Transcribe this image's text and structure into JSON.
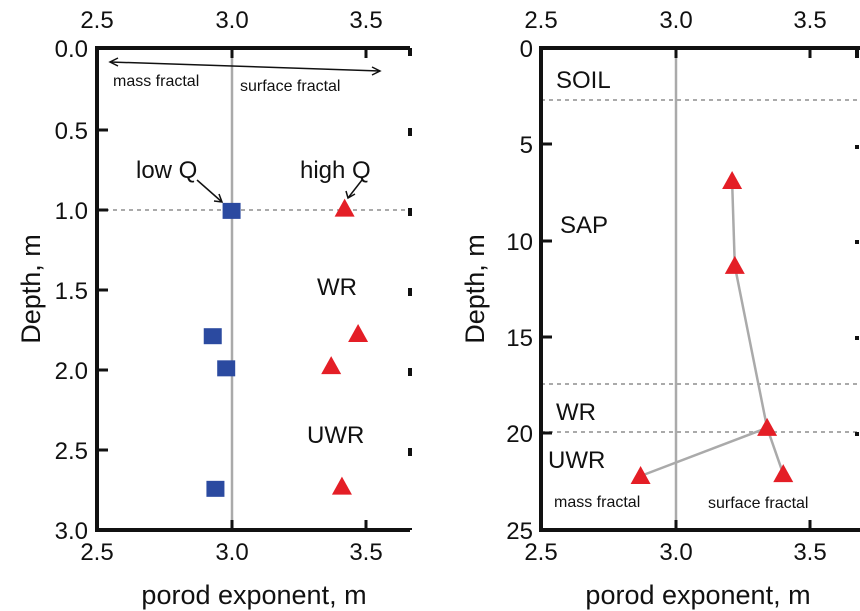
{
  "chart_data": [
    {
      "type": "scatter",
      "xlabel": "porod exponent, m",
      "ylabel": "Depth, m",
      "xlim": [
        2.5,
        3.7
      ],
      "ylim": [
        3.0,
        0.0
      ],
      "x_ticks": [
        "2.5",
        "3.0",
        "3.5"
      ],
      "y_ticks": [
        "0.0",
        "0.5",
        "1.0",
        "1.5",
        "2.0",
        "2.5",
        "3.0"
      ],
      "series": [
        {
          "name": "low Q",
          "marker": "square",
          "color": "#2b4aa0",
          "points": [
            {
              "x": 3.0,
              "y": 1.02
            },
            {
              "x": 2.93,
              "y": 1.8
            },
            {
              "x": 2.98,
              "y": 2.0
            },
            {
              "x": 2.94,
              "y": 2.75
            }
          ]
        },
        {
          "name": "high Q",
          "marker": "triangle",
          "color": "#e41e26",
          "points": [
            {
              "x": 3.42,
              "y": 1.0
            },
            {
              "x": 3.47,
              "y": 1.78
            },
            {
              "x": 3.37,
              "y": 1.98
            },
            {
              "x": 3.41,
              "y": 2.73
            }
          ]
        }
      ],
      "hlines": [
        1.0
      ],
      "vline": 3.0,
      "annotations": {
        "mass_fractal": "mass fractal",
        "surface_fractal": "surface fractal",
        "low_q": "low Q",
        "high_q": "high Q",
        "wr": "WR",
        "uwr": "UWR"
      }
    },
    {
      "type": "line",
      "xlabel": "porod exponent, m",
      "ylabel": "Depth, m",
      "xlim": [
        2.5,
        3.7
      ],
      "ylim": [
        25,
        0
      ],
      "x_ticks": [
        "2.5",
        "3.0",
        "3.5"
      ],
      "y_ticks": [
        "0",
        "5",
        "10",
        "15",
        "20",
        "25"
      ],
      "series": [
        {
          "name": "",
          "marker": "triangle",
          "color": "#e41e26",
          "line_color": "#aaaaaa",
          "points": [
            {
              "x": 3.21,
              "y": 6.9
            },
            {
              "x": 3.22,
              "y": 11.3
            },
            {
              "x": 3.34,
              "y": 19.7
            },
            {
              "x": 3.4,
              "y": 22.1
            }
          ],
          "branch": [
            {
              "x": 3.34,
              "y": 19.7
            },
            {
              "x": 2.87,
              "y": 22.2
            }
          ]
        }
      ],
      "hlines": [
        2.7,
        17.6,
        20.0
      ],
      "vline": 3.0,
      "annotations": {
        "soil": "SOIL",
        "sap": "SAP",
        "wr": "WR",
        "uwr": "UWR",
        "mass_fractal": "mass fractal",
        "surface_fractal": "surface fractal"
      }
    }
  ]
}
